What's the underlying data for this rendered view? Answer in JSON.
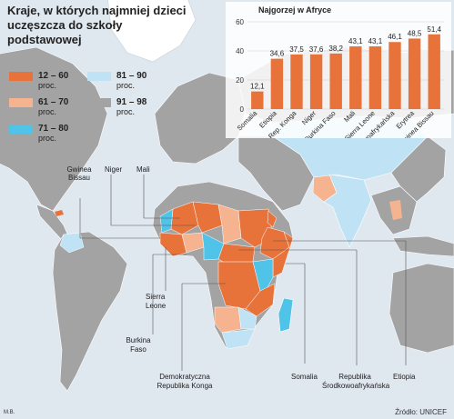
{
  "title": "Kraje, w których najmniej dzieci uczęszcza do szkoły podstawowej",
  "legend": [
    {
      "range": "12 – 60",
      "unit": "proc.",
      "color": "#e8733a"
    },
    {
      "range": "61 – 70",
      "unit": "proc.",
      "color": "#f5b48f"
    },
    {
      "range": "71 – 80",
      "unit": "proc.",
      "color": "#4fc3e8"
    },
    {
      "range": "81 – 90",
      "unit": "proc.",
      "color": "#bfe2f5"
    },
    {
      "range": "91 – 98",
      "unit": "proc.",
      "color": "#a3a3a3"
    }
  ],
  "chart_data": {
    "type": "bar",
    "title": "Najgorzej w Afryce",
    "categories": [
      "Somalia",
      "Etiopia",
      "Demokratyczna Rep. Konga",
      "Niger",
      "Burkina Faso",
      "Mali",
      "Sierra Leone",
      "Republika Środkowoafrykańska",
      "Erytrea",
      "Gwinea Bissau"
    ],
    "values": [
      12.1,
      34.6,
      37.5,
      37.6,
      38.2,
      43.1,
      43.1,
      46.1,
      48.5,
      51.4
    ],
    "value_labels": [
      "12,1",
      "34,6",
      "37,5",
      "37,6",
      "38,2",
      "43,1",
      "43,1",
      "46,1",
      "48,5",
      "51,4"
    ],
    "ylim": [
      0,
      60
    ],
    "yticks": [
      "0",
      "20",
      "40",
      "60"
    ],
    "bar_color": "#e8733a",
    "grid": true
  },
  "map_labels": {
    "gwinea_bissau": "Gwinea Bissau",
    "niger": "Niger",
    "mali": "Mali",
    "sierra_leone": "Sierra Leone",
    "burkina_faso": "Burkina Faso",
    "dr_konga": "Demokratyczna Republika Konga",
    "somalia": "Somalia",
    "rsa": "Republika Środkowoafrykańska",
    "etiopia": "Etiopia"
  },
  "source": "Źródło: UNICEF",
  "author": "M.B."
}
